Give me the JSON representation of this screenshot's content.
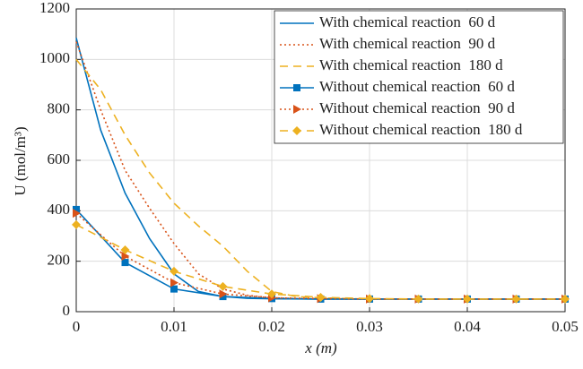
{
  "chart_data": {
    "type": "line",
    "xlabel": "x (m)",
    "ylabel": "U (mol/m³)",
    "xlim": [
      0,
      0.05
    ],
    "xticks": [
      0,
      0.01,
      0.02,
      0.03,
      0.04,
      0.05
    ],
    "ylim": [
      0,
      1200
    ],
    "yticks": [
      0,
      200,
      400,
      600,
      800,
      1000,
      1200
    ],
    "grid": true,
    "legend": "upper right",
    "series": [
      {
        "name": "With chemical reaction  60 d",
        "color": "#0072bd",
        "dash": "solid",
        "marker": null,
        "x": [
          0,
          0.0025,
          0.005,
          0.0075,
          0.01,
          0.0125,
          0.015,
          0.0175,
          0.02,
          0.025,
          0.03,
          0.035,
          0.04,
          0.045,
          0.05
        ],
        "values": [
          1085,
          720,
          470,
          290,
          150,
          80,
          60,
          53,
          51,
          50,
          50,
          50,
          50,
          50,
          50
        ]
      },
      {
        "name": "With chemical reaction  90 d",
        "color": "#d95319",
        "dash": "dotted",
        "marker": null,
        "x": [
          0,
          0.0025,
          0.005,
          0.0075,
          0.01,
          0.0125,
          0.015,
          0.0175,
          0.02,
          0.0225,
          0.025,
          0.03,
          0.035,
          0.04,
          0.045,
          0.05
        ],
        "values": [
          1070,
          800,
          560,
          410,
          270,
          150,
          90,
          65,
          55,
          52,
          51,
          50,
          50,
          50,
          50,
          50
        ]
      },
      {
        "name": "With chemical reaction  180 d",
        "color": "#edb120",
        "dash": "dashed",
        "marker": null,
        "x": [
          0,
          0.0025,
          0.005,
          0.0075,
          0.01,
          0.0125,
          0.015,
          0.0175,
          0.02,
          0.0225,
          0.025,
          0.0275,
          0.03,
          0.035,
          0.04,
          0.045,
          0.05
        ],
        "values": [
          1000,
          880,
          700,
          550,
          430,
          340,
          260,
          160,
          80,
          60,
          55,
          52,
          50,
          50,
          50,
          50,
          50
        ]
      },
      {
        "name": "Without chemical reaction  60 d",
        "color": "#0072bd",
        "dash": "solid",
        "marker": "square",
        "x": [
          0,
          0.005,
          0.01,
          0.015,
          0.02,
          0.025,
          0.03,
          0.035,
          0.04,
          0.045,
          0.05
        ],
        "values": [
          405,
          195,
          90,
          60,
          52,
          50,
          50,
          50,
          50,
          50,
          50
        ]
      },
      {
        "name": "Without chemical reaction  90 d",
        "color": "#d95319",
        "dash": "dotted",
        "marker": "triangle",
        "x": [
          0,
          0.005,
          0.01,
          0.015,
          0.02,
          0.025,
          0.03,
          0.035,
          0.04,
          0.045,
          0.05
        ],
        "values": [
          390,
          220,
          115,
          70,
          55,
          52,
          50,
          50,
          50,
          50,
          50
        ]
      },
      {
        "name": "Without chemical reaction  180 d",
        "color": "#edb120",
        "dash": "dashed",
        "marker": "diamond",
        "x": [
          0,
          0.005,
          0.01,
          0.015,
          0.02,
          0.025,
          0.03,
          0.035,
          0.04,
          0.045,
          0.05
        ],
        "values": [
          345,
          245,
          160,
          100,
          70,
          57,
          52,
          50,
          50,
          50,
          50
        ]
      }
    ]
  }
}
